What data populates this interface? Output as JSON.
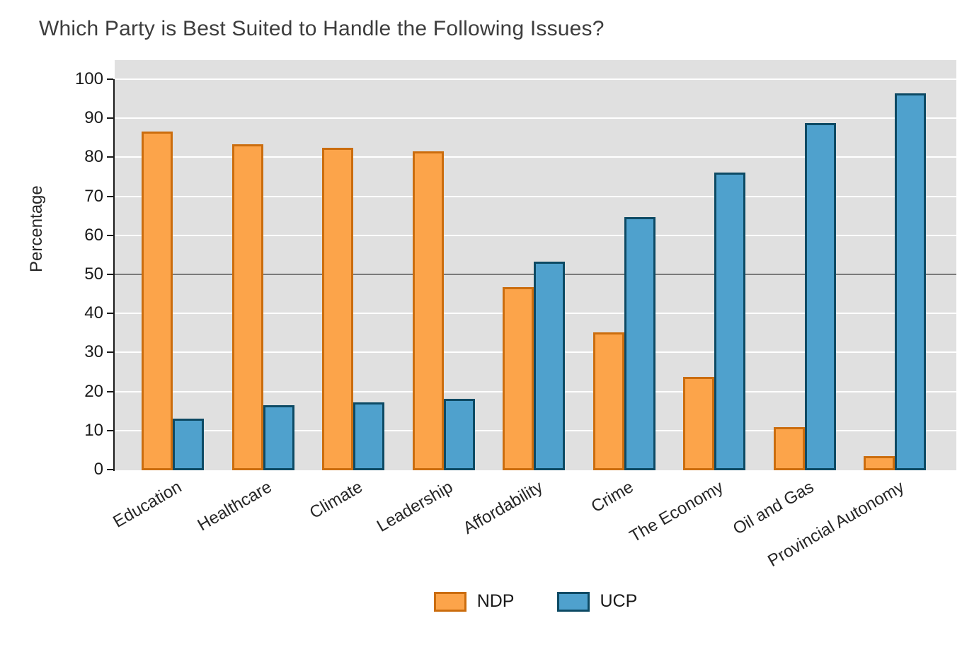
{
  "title": "Which Party is Best Suited to Handle the Following Issues?",
  "chart_data": {
    "type": "bar",
    "title": "Which Party is Best Suited to Handle the Following Issues?",
    "xlabel": "",
    "ylabel": "Percentage",
    "categories": [
      "Education",
      "Healthcare",
      "Climate",
      "Leadership",
      "Affordability",
      "Crime",
      "The Economy",
      "Oil and Gas",
      "Provincial Autonomy"
    ],
    "series": [
      {
        "name": "NDP",
        "fill": "#FCA44A",
        "stroke": "#CB6D0E",
        "values": [
          86.6,
          83.4,
          82.4,
          81.5,
          46.7,
          35.1,
          23.7,
          10.9,
          3.4
        ]
      },
      {
        "name": "UCP",
        "fill": "#4FA1CD",
        "stroke": "#0D4A64",
        "values": [
          13.0,
          16.4,
          17.3,
          18.2,
          53.3,
          64.6,
          76.1,
          88.8,
          96.3
        ]
      }
    ],
    "ylim": [
      0,
      100
    ],
    "yticks": [
      0,
      10,
      20,
      30,
      40,
      50,
      60,
      70,
      80,
      90,
      100
    ],
    "reference_line_y": 50,
    "grid": "horizontal",
    "legend_position": "bottom-center",
    "colors": {
      "plot_background": "#E0E0E0",
      "gridline": "#FFFFFF",
      "reference_line": "#7A7A7A",
      "axis": "#1A1A1A",
      "title_text": "#3D3D3D"
    }
  }
}
